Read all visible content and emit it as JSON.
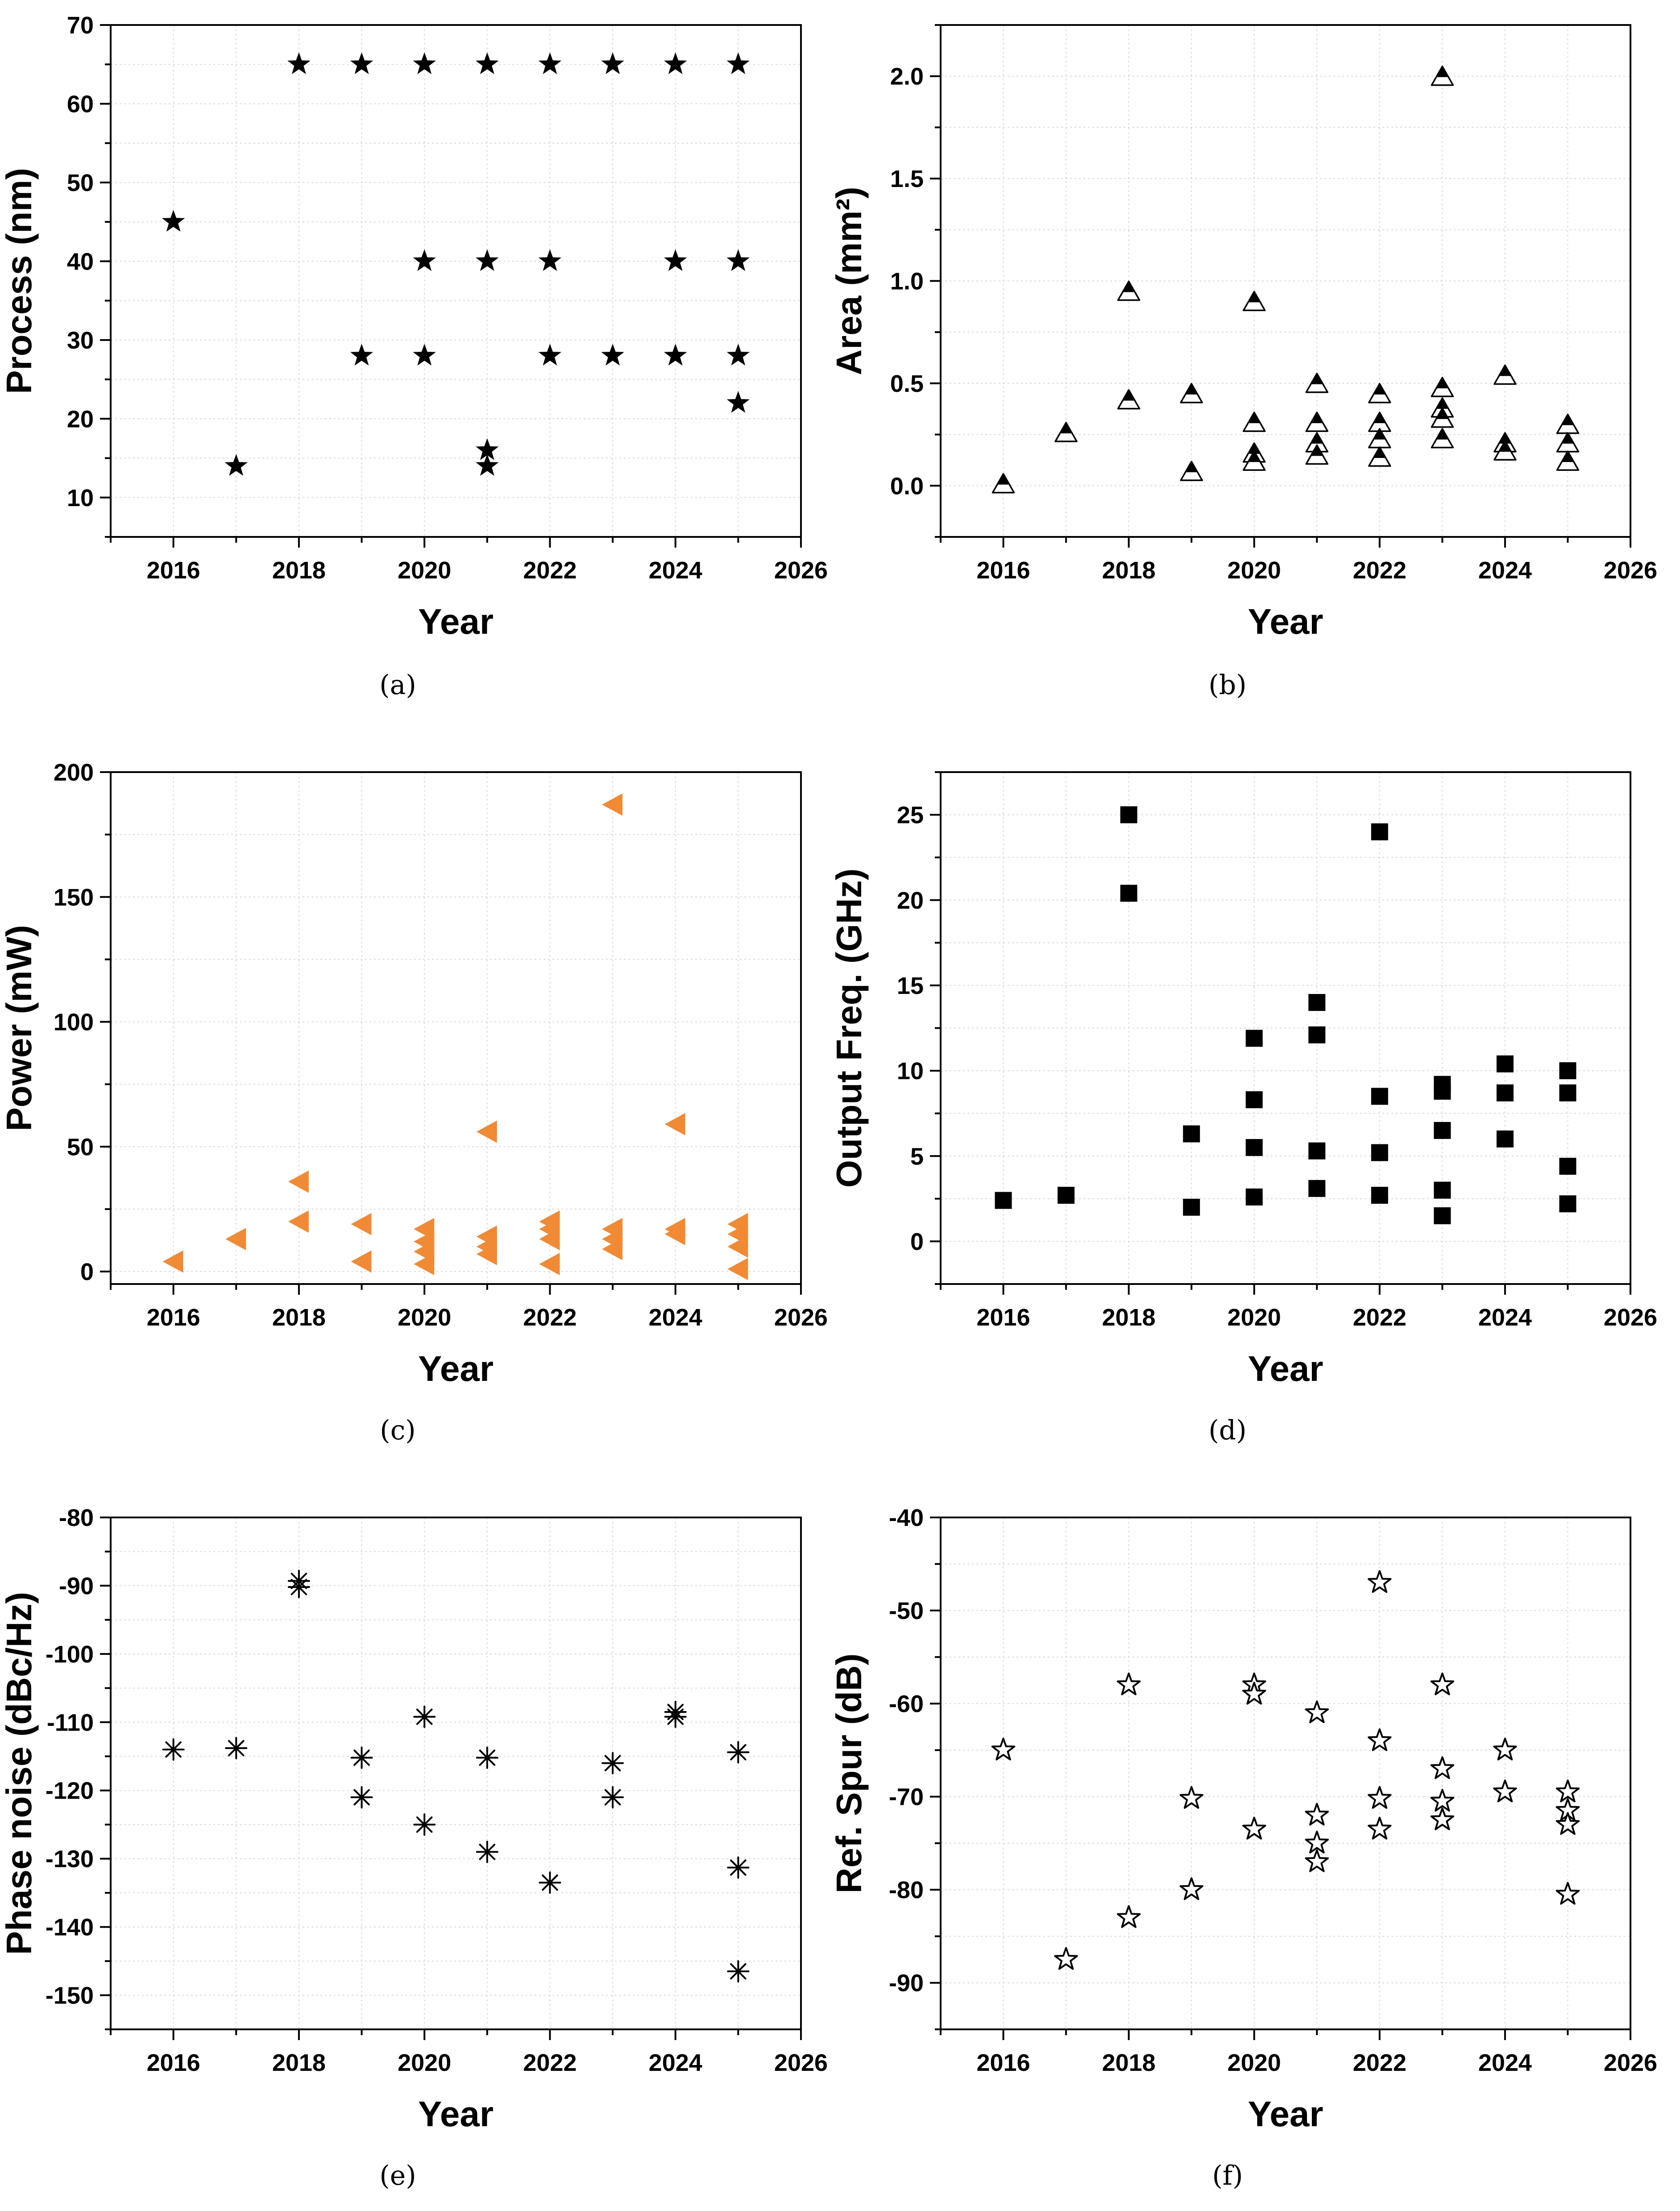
{
  "chart_data": [
    {
      "panel": "a",
      "caption": "(a)",
      "type": "scatter",
      "marker": "star",
      "color": "#000000",
      "xlabel": "Year",
      "ylabel": "Process (nm)",
      "xlim": [
        2015,
        2026
      ],
      "ylim": [
        5,
        70
      ],
      "xticks": [
        2016,
        2018,
        2020,
        2022,
        2024,
        2026
      ],
      "yticks": [
        10,
        20,
        30,
        40,
        50,
        60,
        70
      ],
      "ytick_labels": [
        "10",
        "20",
        "30",
        "40",
        "50",
        "60",
        "70"
      ],
      "grid": true,
      "points": [
        [
          2016,
          45
        ],
        [
          2017,
          14
        ],
        [
          2018,
          65
        ],
        [
          2019,
          65
        ],
        [
          2019,
          28
        ],
        [
          2020,
          65
        ],
        [
          2020,
          40
        ],
        [
          2020,
          28
        ],
        [
          2021,
          65
        ],
        [
          2021,
          40
        ],
        [
          2021,
          16
        ],
        [
          2021,
          14
        ],
        [
          2022,
          65
        ],
        [
          2022,
          40
        ],
        [
          2022,
          28
        ],
        [
          2023,
          65
        ],
        [
          2023,
          28
        ],
        [
          2024,
          65
        ],
        [
          2024,
          40
        ],
        [
          2024,
          28
        ],
        [
          2025,
          65
        ],
        [
          2025,
          40
        ],
        [
          2025,
          28
        ],
        [
          2025,
          22
        ]
      ]
    },
    {
      "panel": "b",
      "caption": "(b)",
      "type": "scatter",
      "marker": "half-triangle",
      "color": "#000000",
      "xlabel": "Year",
      "ylabel": "Area (mm²)",
      "xlim": [
        2015,
        2026
      ],
      "ylim": [
        -0.25,
        2.25
      ],
      "xticks": [
        2016,
        2018,
        2020,
        2022,
        2024,
        2026
      ],
      "yticks": [
        0.0,
        0.5,
        1.0,
        1.5,
        2.0
      ],
      "ytick_labels": [
        "0.0",
        "0.5",
        "1.0",
        "1.5",
        "2.0"
      ],
      "grid": true,
      "points": [
        [
          2016,
          0.01
        ],
        [
          2017,
          0.26
        ],
        [
          2018,
          0.95
        ],
        [
          2018,
          0.42
        ],
        [
          2019,
          0.45
        ],
        [
          2019,
          0.07
        ],
        [
          2020,
          0.9
        ],
        [
          2020,
          0.31
        ],
        [
          2020,
          0.16
        ],
        [
          2020,
          0.12
        ],
        [
          2021,
          0.5
        ],
        [
          2021,
          0.31
        ],
        [
          2021,
          0.21
        ],
        [
          2021,
          0.15
        ],
        [
          2022,
          0.45
        ],
        [
          2022,
          0.31
        ],
        [
          2022,
          0.23
        ],
        [
          2022,
          0.14
        ],
        [
          2023,
          2.0
        ],
        [
          2023,
          0.48
        ],
        [
          2023,
          0.38
        ],
        [
          2023,
          0.33
        ],
        [
          2023,
          0.23
        ],
        [
          2024,
          0.54
        ],
        [
          2024,
          0.21
        ],
        [
          2024,
          0.17
        ],
        [
          2025,
          0.3
        ],
        [
          2025,
          0.21
        ],
        [
          2025,
          0.12
        ]
      ]
    },
    {
      "panel": "c",
      "caption": "(c)",
      "type": "scatter",
      "marker": "left-triangle",
      "color": "#f08a35",
      "xlabel": "Year",
      "ylabel": "Power (mW)",
      "xlim": [
        2015,
        2026
      ],
      "ylim": [
        -5,
        200
      ],
      "xticks": [
        2016,
        2018,
        2020,
        2022,
        2024,
        2026
      ],
      "yticks": [
        0,
        50,
        100,
        150,
        200
      ],
      "ytick_labels": [
        "0",
        "50",
        "100",
        "150",
        "200"
      ],
      "grid": true,
      "points": [
        [
          2016,
          4
        ],
        [
          2017,
          13
        ],
        [
          2018,
          36
        ],
        [
          2018,
          20
        ],
        [
          2019,
          19
        ],
        [
          2019,
          4
        ],
        [
          2020,
          17
        ],
        [
          2020,
          12
        ],
        [
          2020,
          8
        ],
        [
          2020,
          3
        ],
        [
          2021,
          56
        ],
        [
          2021,
          14
        ],
        [
          2021,
          10
        ],
        [
          2021,
          7
        ],
        [
          2022,
          20
        ],
        [
          2022,
          17
        ],
        [
          2022,
          13
        ],
        [
          2022,
          3
        ],
        [
          2023,
          187
        ],
        [
          2023,
          17
        ],
        [
          2023,
          13
        ],
        [
          2023,
          9
        ],
        [
          2024,
          59
        ],
        [
          2024,
          17
        ],
        [
          2024,
          15
        ],
        [
          2025,
          19
        ],
        [
          2025,
          15
        ],
        [
          2025,
          10
        ],
        [
          2025,
          1
        ]
      ]
    },
    {
      "panel": "d",
      "caption": "(d)",
      "type": "scatter",
      "marker": "square",
      "color": "#000000",
      "xlabel": "Year",
      "ylabel": "Output Freq. (GHz)",
      "xlim": [
        2015,
        2026
      ],
      "ylim": [
        -2.5,
        27.5
      ],
      "xticks": [
        2016,
        2018,
        2020,
        2022,
        2024,
        2026
      ],
      "yticks": [
        0,
        5,
        10,
        15,
        20,
        25
      ],
      "ytick_labels": [
        "0",
        "5",
        "10",
        "15",
        "20",
        "25"
      ],
      "grid": true,
      "points": [
        [
          2016,
          2.4
        ],
        [
          2017,
          2.7
        ],
        [
          2018,
          25.0
        ],
        [
          2018,
          20.4
        ],
        [
          2019,
          6.3
        ],
        [
          2019,
          2.0
        ],
        [
          2020,
          11.9
        ],
        [
          2020,
          8.3
        ],
        [
          2020,
          5.5
        ],
        [
          2020,
          2.6
        ],
        [
          2021,
          14.0
        ],
        [
          2021,
          12.1
        ],
        [
          2021,
          5.3
        ],
        [
          2021,
          3.1
        ],
        [
          2022,
          24.0
        ],
        [
          2022,
          8.5
        ],
        [
          2022,
          5.2
        ],
        [
          2022,
          2.7
        ],
        [
          2023,
          9.2
        ],
        [
          2023,
          8.8
        ],
        [
          2023,
          6.5
        ],
        [
          2023,
          3.0
        ],
        [
          2023,
          1.5
        ],
        [
          2024,
          10.4
        ],
        [
          2024,
          8.7
        ],
        [
          2024,
          6.0
        ],
        [
          2025,
          10.0
        ],
        [
          2025,
          8.7
        ],
        [
          2025,
          4.4
        ],
        [
          2025,
          2.2
        ]
      ]
    },
    {
      "panel": "e",
      "caption": "(e)",
      "type": "scatter",
      "marker": "asterisk",
      "color": "#000000",
      "xlabel": "Year",
      "ylabel": "Phase noise (dBc/Hz)",
      "xlim": [
        2015,
        2026
      ],
      "ylim": [
        -155,
        -80
      ],
      "xticks": [
        2016,
        2018,
        2020,
        2022,
        2024,
        2026
      ],
      "yticks": [
        -80,
        -90,
        -100,
        -110,
        -120,
        -130,
        -140,
        -150
      ],
      "ytick_labels": [
        "-80",
        "-90",
        "-100",
        "-110",
        "-120",
        "-130",
        "-140",
        "-150"
      ],
      "grid": true,
      "points": [
        [
          2016,
          -114
        ],
        [
          2017,
          -113.8
        ],
        [
          2018,
          -89.3
        ],
        [
          2018,
          -90.2
        ],
        [
          2019,
          -115.2
        ],
        [
          2019,
          -121
        ],
        [
          2020,
          -109.2
        ],
        [
          2020,
          -125
        ],
        [
          2021,
          -115.2
        ],
        [
          2021,
          -129
        ],
        [
          2022,
          -133.5
        ],
        [
          2023,
          -116
        ],
        [
          2023,
          -121
        ],
        [
          2024,
          -108.5
        ],
        [
          2024,
          -109.2
        ],
        [
          2025,
          -114.4
        ],
        [
          2025,
          -131.3
        ],
        [
          2025,
          -146.5
        ]
      ]
    },
    {
      "panel": "f",
      "caption": "(f)",
      "type": "scatter",
      "marker": "open-star",
      "color": "#000000",
      "xlabel": "Year",
      "ylabel": "Ref. Spur (dB)",
      "xlim": [
        2015,
        2026
      ],
      "ylim": [
        -95,
        -40
      ],
      "xticks": [
        2016,
        2018,
        2020,
        2022,
        2024,
        2026
      ],
      "yticks": [
        -40,
        -50,
        -60,
        -70,
        -80,
        -90
      ],
      "ytick_labels": [
        "-40",
        "-50",
        "-60",
        "-70",
        "-80",
        "-90"
      ],
      "grid": true,
      "points": [
        [
          2016,
          -65
        ],
        [
          2017,
          -87.5
        ],
        [
          2018,
          -58
        ],
        [
          2018,
          -83
        ],
        [
          2019,
          -70.2
        ],
        [
          2019,
          -80
        ],
        [
          2020,
          -58
        ],
        [
          2020,
          -59
        ],
        [
          2020,
          -73.5
        ],
        [
          2021,
          -61
        ],
        [
          2021,
          -72
        ],
        [
          2021,
          -75
        ],
        [
          2021,
          -77
        ],
        [
          2022,
          -47
        ],
        [
          2022,
          -64
        ],
        [
          2022,
          -70.2
        ],
        [
          2022,
          -73.5
        ],
        [
          2023,
          -58
        ],
        [
          2023,
          -67
        ],
        [
          2023,
          -70.5
        ],
        [
          2023,
          -72.5
        ],
        [
          2024,
          -65
        ],
        [
          2024,
          -69.5
        ],
        [
          2025,
          -69.5
        ],
        [
          2025,
          -71.5
        ],
        [
          2025,
          -73
        ],
        [
          2025,
          -80.5
        ]
      ]
    }
  ]
}
